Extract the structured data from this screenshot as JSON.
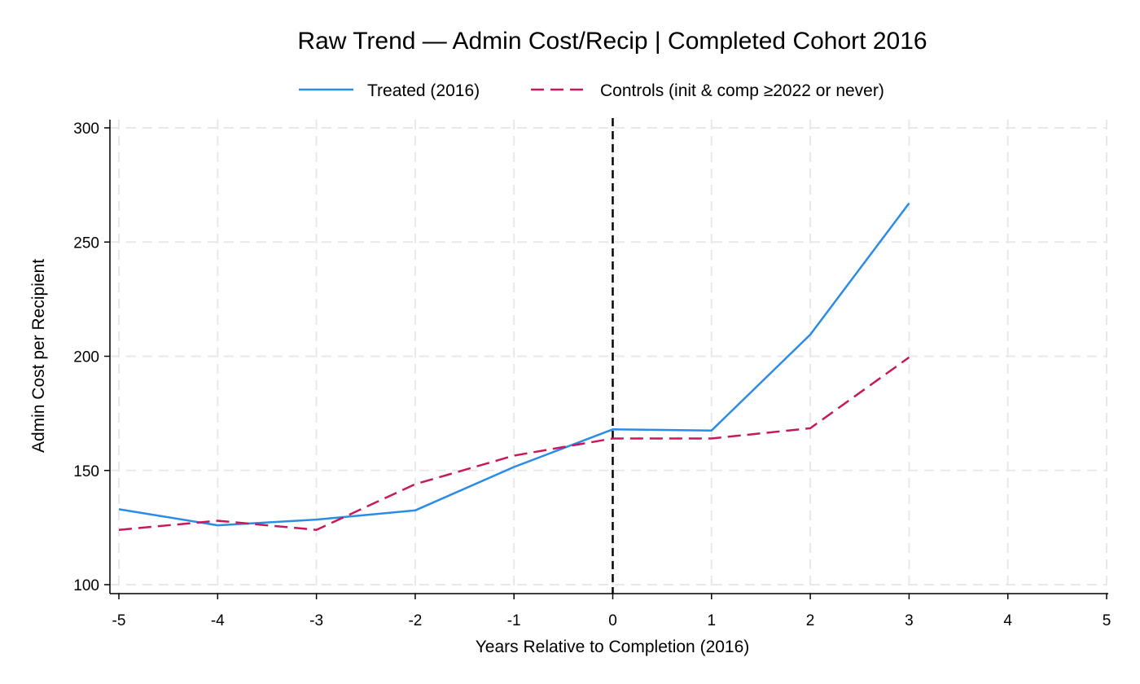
{
  "chart_data": {
    "type": "line",
    "title": "Raw Trend — Admin Cost/Recip | Completed Cohort 2016",
    "xlabel": "Years Relative to Completion (2016)",
    "ylabel": "Admin Cost per Recipient",
    "xlim": [
      -5,
      5
    ],
    "ylim": [
      100,
      300
    ],
    "x_ticks": [
      -5,
      -4,
      -3,
      -2,
      -1,
      0,
      1,
      2,
      3,
      4,
      5
    ],
    "y_ticks": [
      100,
      150,
      200,
      250,
      300
    ],
    "x_tick_labels": [
      "-5",
      "-4",
      "-3",
      "-2",
      "-1",
      "0",
      "1",
      "2",
      "3",
      "4",
      "5"
    ],
    "y_tick_labels": [
      "100",
      "150",
      "200",
      "250",
      "300"
    ],
    "grid": true,
    "legend_position": "top",
    "reference_line": {
      "x": 0,
      "style": "dashed",
      "color": "#000000"
    },
    "series": [
      {
        "name": "Treated (2016)",
        "color": "#2b8ce8",
        "style": "solid",
        "x": [
          -5,
          -4,
          -3,
          -2,
          -1,
          0,
          1,
          2,
          3
        ],
        "values": [
          133,
          126,
          128.5,
          132.5,
          151.5,
          168,
          167.5,
          209.5,
          267
        ]
      },
      {
        "name": "Controls (init & comp ≥2022 or never)",
        "color": "#c8185a",
        "style": "dashed",
        "x": [
          -5,
          -4,
          -3,
          -2,
          -1,
          0,
          1,
          2,
          3
        ],
        "values": [
          124,
          128,
          124,
          144,
          156.5,
          164,
          164,
          168.5,
          199.5
        ]
      }
    ]
  }
}
